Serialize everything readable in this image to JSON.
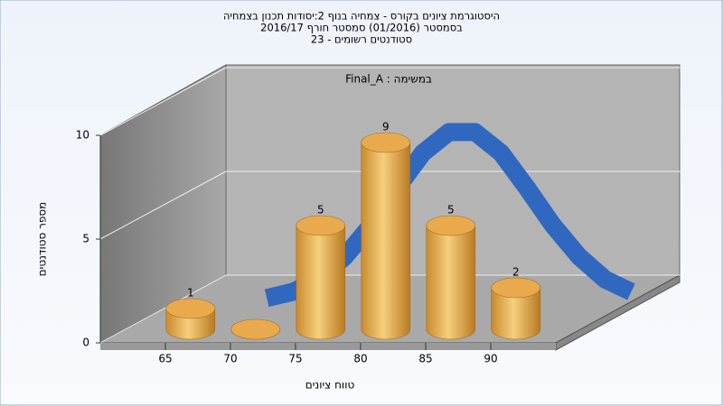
{
  "chart_data": {
    "type": "bar",
    "title": "היסטוגרמת ציונים בקורס - צמחיה בנוף 2:יסודות תכנון בצמחיה",
    "subtitle": [
      "בסמסטר (01/2016) סמסטר חורף 2016/17",
      "סטודנטים רשומים - 23"
    ],
    "annotation": "Final_A : במשימה",
    "x_label": "טווח ציונים",
    "y_label": "מספר סטודנטים",
    "x": [
      65,
      70,
      75,
      80,
      85,
      90
    ],
    "values": [
      1,
      0,
      5,
      9,
      5,
      2
    ],
    "color": "#e8a445",
    "xlim": [
      60,
      95
    ],
    "xticks": [
      65,
      70,
      75,
      80,
      85,
      90
    ],
    "ylim": [
      0,
      10
    ],
    "yticks": [
      0,
      5,
      10
    ],
    "grid": true,
    "curve": {
      "color": "#3068c0",
      "x": [
        67,
        69,
        71,
        73,
        75,
        77,
        79,
        81,
        83,
        85,
        87,
        89,
        91,
        93,
        95
      ],
      "values": [
        0.2,
        0.5,
        1.1,
        2.2,
        3.7,
        5.5,
        7.2,
        8.2,
        8.2,
        7.2,
        5.5,
        3.7,
        2.2,
        1.1,
        0.5
      ]
    }
  }
}
